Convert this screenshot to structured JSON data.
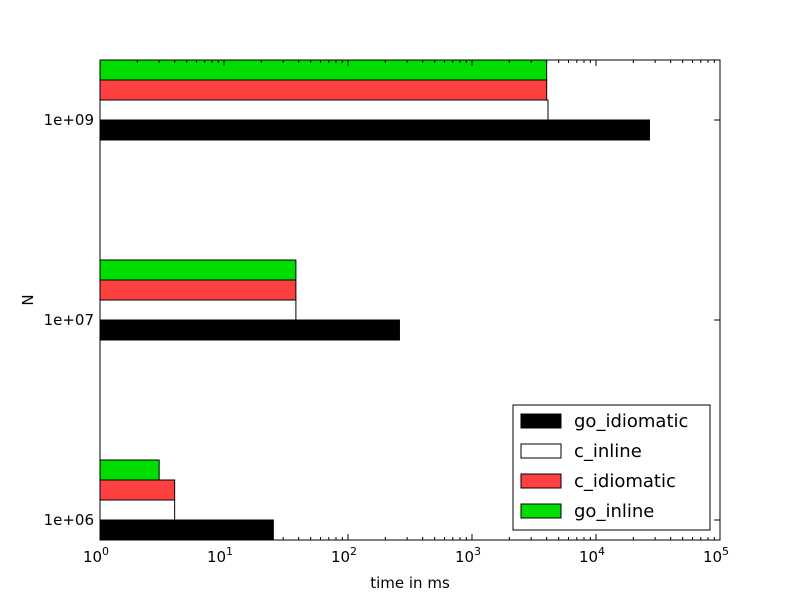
{
  "chart_data": {
    "type": "bar",
    "orientation": "horizontal",
    "xlabel": "time in ms",
    "ylabel": "N",
    "xscale": "log",
    "xlim": [
      1,
      100000
    ],
    "x_ticks": [
      {
        "value": 1,
        "base": "10",
        "exp": "0"
      },
      {
        "value": 10,
        "base": "10",
        "exp": "1"
      },
      {
        "value": 100,
        "base": "10",
        "exp": "2"
      },
      {
        "value": 1000,
        "base": "10",
        "exp": "3"
      },
      {
        "value": 10000,
        "base": "10",
        "exp": "4"
      },
      {
        "value": 100000,
        "base": "10",
        "exp": "5"
      }
    ],
    "categories": [
      "1e+06",
      "1e+07",
      "1e+09"
    ],
    "series": [
      {
        "name": "go_idiomatic",
        "color": "#000000",
        "values": [
          25,
          260,
          27000
        ]
      },
      {
        "name": "c_inline",
        "color": "#ffffff",
        "values": [
          4,
          38,
          4100
        ]
      },
      {
        "name": "c_idiomatic",
        "color": "#ff4040",
        "values": [
          4,
          38,
          4000
        ]
      },
      {
        "name": "go_inline",
        "color": "#00dd00",
        "values": [
          3,
          38,
          4000
        ]
      }
    ],
    "legend_position": "lower-right",
    "grid": false
  }
}
